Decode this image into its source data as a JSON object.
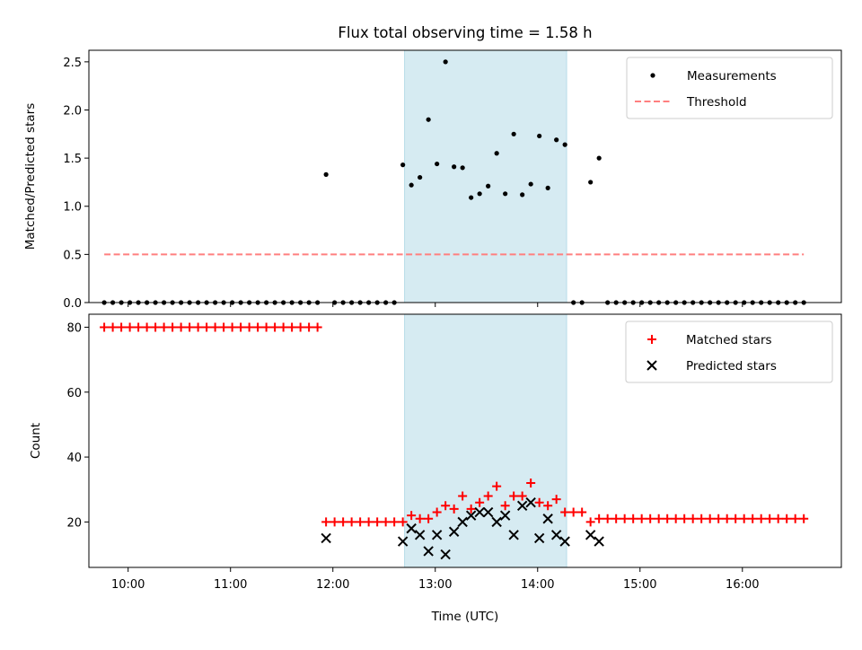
{
  "chart_data": {
    "title": "Flux total observing time = 1.58 h",
    "xlabel": "Time (UTC)",
    "x_ticks": [
      "10:00",
      "11:00",
      "12:00",
      "13:00",
      "14:00",
      "15:00",
      "16:00"
    ],
    "x_range": [
      "09:37",
      "16:58"
    ],
    "shaded_span": [
      "12:42",
      "14:17"
    ],
    "shade_color": "#add8e6",
    "panels": [
      {
        "type": "scatter",
        "ylabel": "Matched/Predicted stars",
        "ylim": [
          0,
          2.62
        ],
        "y_ticks": [
          0.0,
          0.5,
          1.0,
          1.5,
          2.0,
          2.5
        ],
        "legend_position": "upper right",
        "series": [
          {
            "name": "Measurements",
            "marker": "dot",
            "color": "#000000",
            "x": [
              "09:46",
              "09:51",
              "09:56",
              "10:01",
              "10:06",
              "10:11",
              "10:16",
              "10:21",
              "10:26",
              "10:31",
              "10:36",
              "10:41",
              "10:46",
              "10:51",
              "10:56",
              "11:01",
              "11:06",
              "11:11",
              "11:16",
              "11:21",
              "11:26",
              "11:31",
              "11:36",
              "11:41",
              "11:46",
              "11:51",
              "11:56",
              "12:01",
              "12:06",
              "12:11",
              "12:16",
              "12:21",
              "12:26",
              "12:31",
              "12:36",
              "12:41",
              "12:46",
              "12:51",
              "12:56",
              "13:01",
              "13:06",
              "13:11",
              "13:16",
              "13:21",
              "13:26",
              "13:31",
              "13:36",
              "13:41",
              "13:46",
              "13:51",
              "13:56",
              "14:01",
              "14:06",
              "14:11",
              "14:16",
              "14:21",
              "14:26",
              "14:31",
              "14:36",
              "14:41",
              "14:46",
              "14:51",
              "14:56",
              "15:01",
              "15:06",
              "15:11",
              "15:16",
              "15:21",
              "15:26",
              "15:31",
              "15:36",
              "15:41",
              "15:46",
              "15:51",
              "15:56",
              "16:01",
              "16:06",
              "16:11",
              "16:16",
              "16:21",
              "16:26",
              "16:31",
              "16:36"
            ],
            "y": [
              0,
              0,
              0,
              0,
              0,
              0,
              0,
              0,
              0,
              0,
              0,
              0,
              0,
              0,
              0,
              0,
              0,
              0,
              0,
              0,
              0,
              0,
              0,
              0,
              0,
              0,
              1.33,
              0,
              0,
              0,
              0,
              0,
              0,
              0,
              0,
              1.43,
              1.22,
              1.3,
              1.9,
              1.44,
              2.5,
              1.41,
              1.4,
              1.09,
              1.13,
              1.21,
              1.55,
              1.13,
              1.75,
              1.12,
              1.23,
              1.73,
              1.19,
              1.69,
              1.64,
              0,
              0,
              1.25,
              1.5,
              0,
              0,
              0,
              0,
              0,
              0,
              0,
              0,
              0,
              0,
              0,
              0,
              0,
              0,
              0,
              0,
              0,
              0,
              0,
              0,
              0,
              0,
              0,
              0
            ]
          },
          {
            "name": "Threshold",
            "marker": "dashed-line",
            "color": "#ff7f7f",
            "x": [
              "09:46",
              "16:36"
            ],
            "y": [
              0.5,
              0.5
            ]
          }
        ]
      },
      {
        "type": "scatter",
        "ylabel": "Count",
        "ylim": [
          6,
          84
        ],
        "y_ticks": [
          20,
          40,
          60,
          80
        ],
        "legend_position": "upper right",
        "series": [
          {
            "name": "Matched stars",
            "marker": "plus",
            "color": "#ff0000",
            "x": [
              "09:46",
              "09:51",
              "09:56",
              "10:01",
              "10:06",
              "10:11",
              "10:16",
              "10:21",
              "10:26",
              "10:31",
              "10:36",
              "10:41",
              "10:46",
              "10:51",
              "10:56",
              "11:01",
              "11:06",
              "11:11",
              "11:16",
              "11:21",
              "11:26",
              "11:31",
              "11:36",
              "11:41",
              "11:46",
              "11:51",
              "11:56",
              "12:01",
              "12:06",
              "12:11",
              "12:16",
              "12:21",
              "12:26",
              "12:31",
              "12:36",
              "12:41",
              "12:46",
              "12:51",
              "12:56",
              "13:01",
              "13:06",
              "13:11",
              "13:16",
              "13:21",
              "13:26",
              "13:31",
              "13:36",
              "13:41",
              "13:46",
              "13:51",
              "13:56",
              "14:01",
              "14:06",
              "14:11",
              "14:16",
              "14:21",
              "14:26",
              "14:31",
              "14:36",
              "14:41",
              "14:46",
              "14:51",
              "14:56",
              "15:01",
              "15:06",
              "15:11",
              "15:16",
              "15:21",
              "15:26",
              "15:31",
              "15:36",
              "15:41",
              "15:46",
              "15:51",
              "15:56",
              "16:01",
              "16:06",
              "16:11",
              "16:16",
              "16:21",
              "16:26",
              "16:31",
              "16:36"
            ],
            "y": [
              80,
              80,
              80,
              80,
              80,
              80,
              80,
              80,
              80,
              80,
              80,
              80,
              80,
              80,
              80,
              80,
              80,
              80,
              80,
              80,
              80,
              80,
              80,
              80,
              80,
              80,
              20,
              20,
              20,
              20,
              20,
              20,
              20,
              20,
              20,
              20,
              22,
              21,
              21,
              23,
              25,
              24,
              28,
              24,
              26,
              28,
              31,
              25,
              28,
              28,
              32,
              26,
              25,
              27,
              23,
              23,
              23,
              20,
              21,
              21,
              21,
              21,
              21,
              21,
              21,
              21,
              21,
              21,
              21,
              21,
              21,
              21,
              21,
              21,
              21,
              21,
              21,
              21,
              21,
              21,
              21,
              21,
              21
            ]
          },
          {
            "name": "Predicted stars",
            "marker": "x",
            "color": "#000000",
            "x": [
              "11:56",
              "12:41",
              "12:46",
              "12:51",
              "12:56",
              "13:01",
              "13:06",
              "13:11",
              "13:16",
              "13:21",
              "13:26",
              "13:31",
              "13:36",
              "13:41",
              "13:46",
              "13:51",
              "13:56",
              "14:01",
              "14:06",
              "14:11",
              "14:16",
              "14:31",
              "14:36"
            ],
            "y": [
              15,
              14,
              18,
              16,
              11,
              16,
              10,
              17,
              20,
              22,
              23,
              23,
              20,
              22,
              16,
              25,
              26,
              15,
              21,
              16,
              14,
              16,
              14
            ]
          }
        ]
      }
    ]
  }
}
